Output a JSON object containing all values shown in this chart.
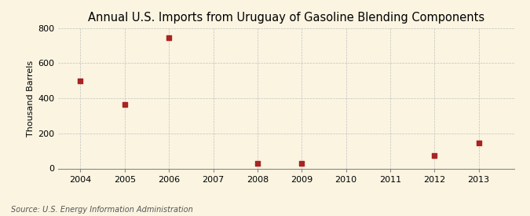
{
  "title": "Annual U.S. Imports from Uruguay of Gasoline Blending Components",
  "ylabel": "Thousand Barrels",
  "source": "Source: U.S. Energy Information Administration",
  "x_data": [
    2004,
    2005,
    2006,
    2008,
    2009,
    2012,
    2013
  ],
  "y_data": [
    500,
    365,
    745,
    30,
    30,
    75,
    145
  ],
  "xlim": [
    2003.5,
    2013.8
  ],
  "ylim": [
    0,
    800
  ],
  "yticks": [
    0,
    200,
    400,
    600,
    800
  ],
  "xticks": [
    2004,
    2005,
    2006,
    2007,
    2008,
    2009,
    2010,
    2011,
    2012,
    2013
  ],
  "marker_color": "#aa2222",
  "marker": "s",
  "marker_size": 4,
  "background_color": "#faf4e1",
  "grid_color": "#bbbbbb",
  "title_fontsize": 10.5,
  "label_fontsize": 8,
  "tick_fontsize": 8,
  "source_fontsize": 7
}
